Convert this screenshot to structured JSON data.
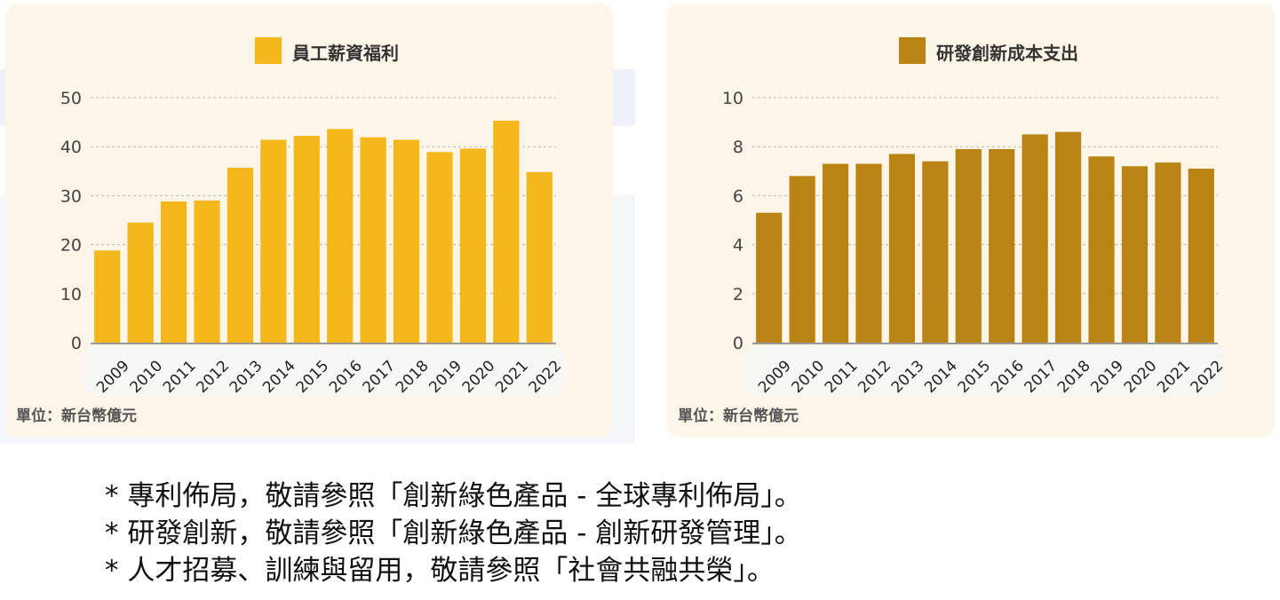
{
  "chart_data": [
    {
      "type": "bar",
      "title": "",
      "legend": "員工薪資福利",
      "unit": "單位：新台幣億元",
      "color": "#f5b81c",
      "categories": [
        "2009",
        "2010",
        "2011",
        "2012",
        "2013",
        "2014",
        "2015",
        "2016",
        "2017",
        "2018",
        "2019",
        "2020",
        "2021",
        "2022"
      ],
      "values": [
        18.8,
        24.5,
        28.8,
        29.0,
        35.7,
        41.4,
        42.2,
        43.6,
        41.9,
        41.4,
        38.9,
        39.6,
        45.3,
        34.8
      ],
      "ylim": [
        0,
        50
      ],
      "yticks": [
        0,
        10,
        20,
        30,
        40,
        50
      ],
      "grid": true,
      "legend_position": "top-center"
    },
    {
      "type": "bar",
      "title": "",
      "legend": "研發創新成本支出",
      "unit": "單位：新台幣億元",
      "color": "#b98413",
      "categories": [
        "2009",
        "2010",
        "2011",
        "2012",
        "2013",
        "2014",
        "2015",
        "2016",
        "2017",
        "2018",
        "2019",
        "2020",
        "2021",
        "2022"
      ],
      "values": [
        5.3,
        6.8,
        7.3,
        7.3,
        7.7,
        7.4,
        7.9,
        7.9,
        8.5,
        8.6,
        7.6,
        7.2,
        7.35,
        7.1
      ],
      "ylim": [
        0,
        10
      ],
      "yticks": [
        0,
        2,
        4,
        6,
        8,
        10
      ],
      "grid": true,
      "legend_position": "top-center"
    }
  ],
  "notes": [
    "* 專利佈局，敬請參照「創新綠色產品 - 全球專利佈局」。",
    "* 研發創新，敬請參照「創新綠色產品 - 創新研發管理」。",
    "* 人才招募、訓練與留用，敬請參照「社會共融共榮」。"
  ]
}
